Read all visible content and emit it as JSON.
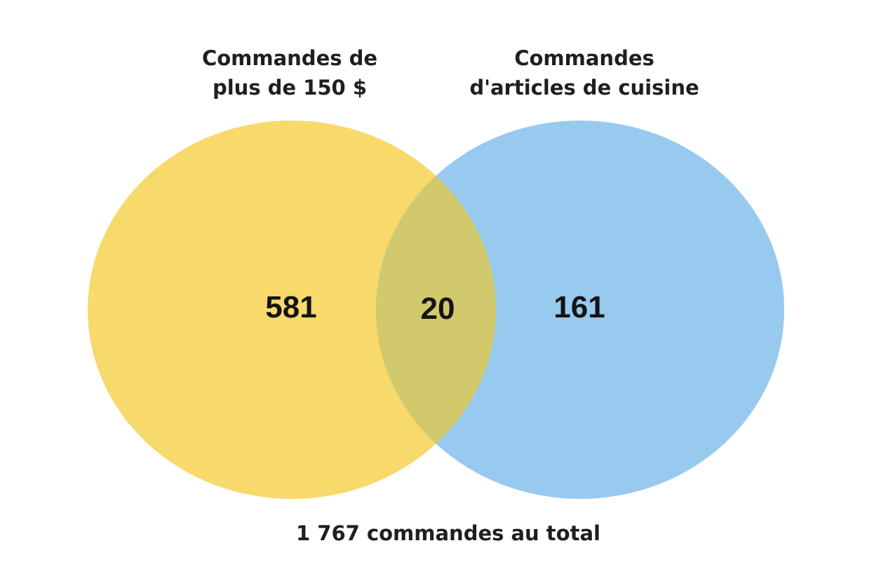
{
  "sets": {
    "a": {
      "title_line1": "Commandes de",
      "title_line2": "plus de 150 $",
      "only_count": "581",
      "color": "#f7d96c"
    },
    "b": {
      "title_line1": "Commandes",
      "title_line2": "d'articles de cuisine",
      "only_count": "161",
      "color": "#98caf0"
    },
    "intersection": {
      "count": "20",
      "color": "#d1c96b"
    }
  },
  "total_label": "1 767 commandes au total"
}
